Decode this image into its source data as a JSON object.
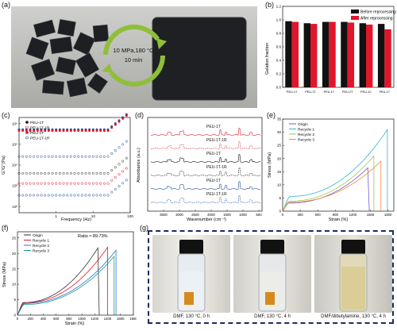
{
  "panels": {
    "a": {
      "label": "(a)",
      "arrow_text_1": "10 MPa,180 °C",
      "arrow_text_2": "10 min"
    },
    "b": {
      "label": "(b)",
      "ylabel": "Gelation fraction",
      "legend": [
        "Before reprocessing",
        "After reprocessing"
      ],
      "colors": {
        "before": "#111111",
        "after": "#e0162b"
      },
      "chart_data": {
        "type": "bar",
        "categories": [
          "PEU-1T",
          "PEU-1T",
          "PEU-1T",
          "PEU-2T",
          "PEU-1C",
          "PEU-1T"
        ],
        "series": [
          {
            "name": "Before reprocessing",
            "values": [
              0.98,
              0.95,
              0.97,
              0.97,
              0.95,
              0.94
            ]
          },
          {
            "name": "After reprocessing",
            "values": [
              0.97,
              0.94,
              0.97,
              0.96,
              0.93,
              0.86
            ]
          }
        ],
        "ylim": [
          0.0,
          1.2
        ],
        "yticks": [
          "0.0",
          "0.2",
          "0.4",
          "0.6",
          "0.8",
          "1.0",
          "1.2"
        ]
      }
    },
    "c": {
      "label": "(c)",
      "ylabel": "G'/G''(Pa)",
      "xlabel": "Frequency (Hz)",
      "legend": [
        "PEU-1T",
        "PEU-1T-1R",
        "PEU-1T",
        "PEU-1T-1R"
      ],
      "xticks": [
        "1",
        "10",
        "100"
      ],
      "yticks": [
        "10²",
        "10³",
        "10⁴",
        "10⁵",
        "10⁶"
      ]
    },
    "d": {
      "label": "(d)",
      "ylabel": "Absorbance (a.u.)",
      "xlabel": "Wavenumber (cm⁻¹)",
      "curve_labels": [
        "PEU-1T",
        "PEU-1T-1R",
        "PEU-1T",
        "PEU-1T-1R",
        "PEU-1T",
        "PEU-1T-1R"
      ],
      "xticks": [
        "3500",
        "3000",
        "2500",
        "2000",
        "1500",
        "1000",
        "500"
      ]
    },
    "e": {
      "label": "(e)",
      "ylabel": "Stress (MPa)",
      "xlabel": "Strain (%)",
      "legend": [
        "Origin",
        "Recycle 1",
        "Recycle 2",
        "Recycle 3"
      ],
      "colors": [
        "#7b56c9",
        "#2fb6c9",
        "#9ec85a",
        "#f08a3c"
      ],
      "xticks": [
        "0",
        "300",
        "600",
        "900",
        "1200",
        "1500",
        "1800"
      ],
      "yticks": [
        "0",
        "5",
        "10",
        "15",
        "20",
        "25",
        "30",
        "35"
      ],
      "chart_data": {
        "type": "line",
        "series": [
          {
            "name": "Origin",
            "break_strain": 1480,
            "break_stress": 17
          },
          {
            "name": "Recycle 1",
            "break_strain": 1790,
            "break_stress": 31
          },
          {
            "name": "Recycle 2",
            "break_strain": 1560,
            "break_stress": 21
          },
          {
            "name": "Recycle 3",
            "break_strain": 1680,
            "break_stress": 19
          }
        ],
        "xlim": [
          0,
          1900
        ],
        "ylim": [
          0,
          35
        ]
      }
    },
    "f": {
      "label": "(f)",
      "ylabel": "Stress (MPa)",
      "xlabel": "Strain (%)",
      "legend": [
        "Origin",
        "Recycle 1",
        "Recycle 2",
        "Recycle 3"
      ],
      "colors": [
        "#333333",
        "#e0162b",
        "#2f6fd0",
        "#1a9c8a"
      ],
      "annotation": "Ratio ≈ 89.73%",
      "xticks": [
        "0",
        "200",
        "400",
        "600",
        "800",
        "1000",
        "1200",
        "1400",
        "1600",
        "1800"
      ],
      "yticks": [
        "0",
        "5",
        "10",
        "15",
        "20",
        "25"
      ],
      "chart_data": {
        "type": "line",
        "series": [
          {
            "name": "Origin",
            "break_strain": 1270,
            "break_stress": 22.5
          },
          {
            "name": "Recycle 1",
            "break_strain": 1400,
            "break_stress": 22
          },
          {
            "name": "Recycle 2",
            "break_strain": 1530,
            "break_stress": 21
          },
          {
            "name": "Recycle 3",
            "break_strain": 1500,
            "break_stress": 19
          }
        ],
        "xlim": [
          0,
          1800
        ],
        "ylim": [
          0,
          27
        ]
      }
    },
    "g": {
      "label": "(g)",
      "captions": [
        "DMF, 130 °C, 0 h",
        "DMF, 130 °C, 4 h",
        "DMF/dibutylamine, 130 °C, 4 h"
      ]
    }
  }
}
